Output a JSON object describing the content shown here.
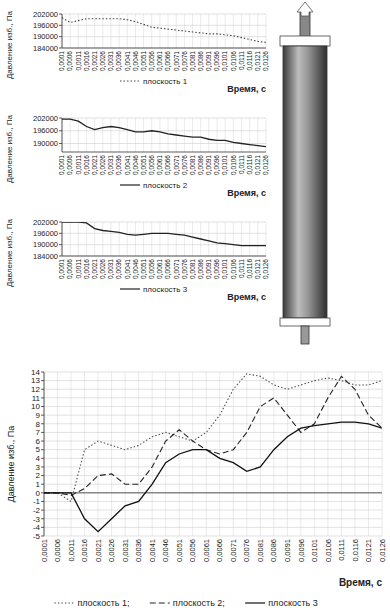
{
  "chart_data": [
    {
      "type": "line",
      "y_label": "Давление изб., Па",
      "x_label": "Время, с",
      "categories": [
        "0,0001",
        "0,0006",
        "0,0011",
        "0,0016",
        "0,0021",
        "0,0026",
        "0,0031",
        "0,0036",
        "0,0041",
        "0,0046",
        "0,0051",
        "0,0056",
        "0,0061",
        "0,0066",
        "0,0071",
        "0,0076",
        "0,0081",
        "0,0086",
        "0,0091",
        "0,0096",
        "0,0101",
        "0,0106",
        "0,0111",
        "0,0116",
        "0,0121",
        "0,0126"
      ],
      "series": [
        {
          "name": "плоскость 1",
          "color": "#444444",
          "line_style": "dotted",
          "values": [
            200000,
            197500,
            198500,
            199500,
            199500,
            199500,
            199500,
            199500,
            199000,
            198000,
            196500,
            195000,
            194500,
            194000,
            193500,
            193000,
            192500,
            192000,
            191500,
            191500,
            191000,
            190500,
            189500,
            188500,
            187500,
            187000
          ]
        }
      ],
      "ylim": [
        184000,
        202000
      ],
      "yticks": [
        184000,
        190000,
        196000,
        202000
      ],
      "grid": true,
      "legend": "bottom"
    },
    {
      "type": "line",
      "y_label": "Давление изб., Па",
      "x_label": "Время, с",
      "categories": [
        "0,0001",
        "0,0006",
        "0,0011",
        "0,0016",
        "0,0021",
        "0,0026",
        "0,0031",
        "0,0036",
        "0,0041",
        "0,0046",
        "0,0051",
        "0,0056",
        "0,0061",
        "0,0066",
        "0,0071",
        "0,0076",
        "0,0081",
        "0,0086",
        "0,0091",
        "0,0096",
        "0,0101",
        "0,0106",
        "0,0111",
        "0,0116",
        "0,0121",
        "0,0126"
      ],
      "series": [
        {
          "name": "плоскость 2",
          "color": "#222222",
          "line_style": "solid",
          "values": [
            201500,
            201500,
            200500,
            198000,
            196500,
            197500,
            198000,
            197500,
            196500,
            195500,
            195500,
            196000,
            195500,
            194500,
            194000,
            193500,
            193000,
            193000,
            192000,
            191500,
            191500,
            190500,
            190000,
            189500,
            189000,
            188500
          ]
        }
      ],
      "ylim": [
        186000,
        202000
      ],
      "yticks": [
        190000,
        196000,
        202000
      ],
      "grid": true,
      "legend": "bottom"
    },
    {
      "type": "line",
      "y_label": "Давление изб., Па",
      "x_label": "Время, с",
      "categories": [
        "0,0001",
        "0,0006",
        "0,0011",
        "0,0016",
        "0,0021",
        "0,0026",
        "0,0031",
        "0,0036",
        "0,0041",
        "0,0046",
        "0,0051",
        "0,0056",
        "0,0061",
        "0,0066",
        "0,0071",
        "0,0076",
        "0,0081",
        "0,0086",
        "0,0091",
        "0,0096",
        "0,0101",
        "0,0106",
        "0,0111",
        "0,0116",
        "0,0121",
        "0,0126"
      ],
      "series": [
        {
          "name": "плоскость 3",
          "color": "#222222",
          "line_style": "solid",
          "values": [
            202000,
            202000,
            202000,
            201500,
            198500,
            197500,
            197000,
            196500,
            195500,
            195000,
            195500,
            196000,
            196000,
            196000,
            195500,
            195000,
            194000,
            193000,
            192000,
            191000,
            190500,
            190000,
            189500,
            189500,
            189500,
            189500
          ]
        }
      ],
      "ylim": [
        184000,
        202000
      ],
      "yticks": [
        184000,
        190000,
        196000,
        202000
      ],
      "grid": true,
      "legend": "bottom"
    },
    {
      "type": "line",
      "y_label": "Давление изб., Па",
      "x_label": "Время, с",
      "categories": [
        "0,0001",
        "0,0006",
        "0,0011",
        "0,0016",
        "0,0021",
        "0,0026",
        "0,0031",
        "0,0036",
        "0,0041",
        "0,0046",
        "0,0051",
        "0,0056",
        "0,0061",
        "0,0066",
        "0,0071",
        "0,0076",
        "0,0081",
        "0,0086",
        "0,0091",
        "0,0096",
        "0,0101",
        "0,0106",
        "0,0111",
        "0,0116",
        "0,0121",
        "0,0126"
      ],
      "series": [
        {
          "name": "плоскость 1;",
          "color": "#555555",
          "line_style": "dotted",
          "values": [
            0,
            0,
            -1,
            5,
            6,
            5.5,
            5,
            5.5,
            6.5,
            7,
            6.5,
            6,
            7,
            9,
            12,
            13.8,
            13.5,
            12.5,
            12,
            12.5,
            13,
            13.3,
            13,
            12.5,
            12.5,
            13
          ]
        },
        {
          "name": "плоскость 2;",
          "color": "#222222",
          "line_style": "dashed",
          "values": [
            0,
            0,
            -0.3,
            0.5,
            2,
            2.2,
            1,
            1,
            3,
            6,
            7.3,
            6,
            5,
            4.5,
            5,
            7,
            10,
            11,
            9,
            7,
            8,
            11,
            13.5,
            12,
            9,
            7.5
          ]
        },
        {
          "name": "плоскость 3",
          "color": "#111111",
          "line_style": "solid",
          "values": [
            0,
            0,
            0,
            -3,
            -4.5,
            -3,
            -1.5,
            -1,
            1,
            3.5,
            4.5,
            5,
            5,
            4,
            3.5,
            2.5,
            3,
            5,
            6.5,
            7.5,
            7.8,
            8,
            8.2,
            8.2,
            8,
            7.5
          ]
        }
      ],
      "ylim": [
        -5,
        14
      ],
      "yticks": [
        -5,
        -4,
        -3,
        -2,
        -1,
        0,
        1,
        2,
        3,
        4,
        5,
        6,
        7,
        8,
        9,
        10,
        11,
        12,
        13,
        14
      ],
      "grid": true,
      "legend": "bottom"
    }
  ]
}
